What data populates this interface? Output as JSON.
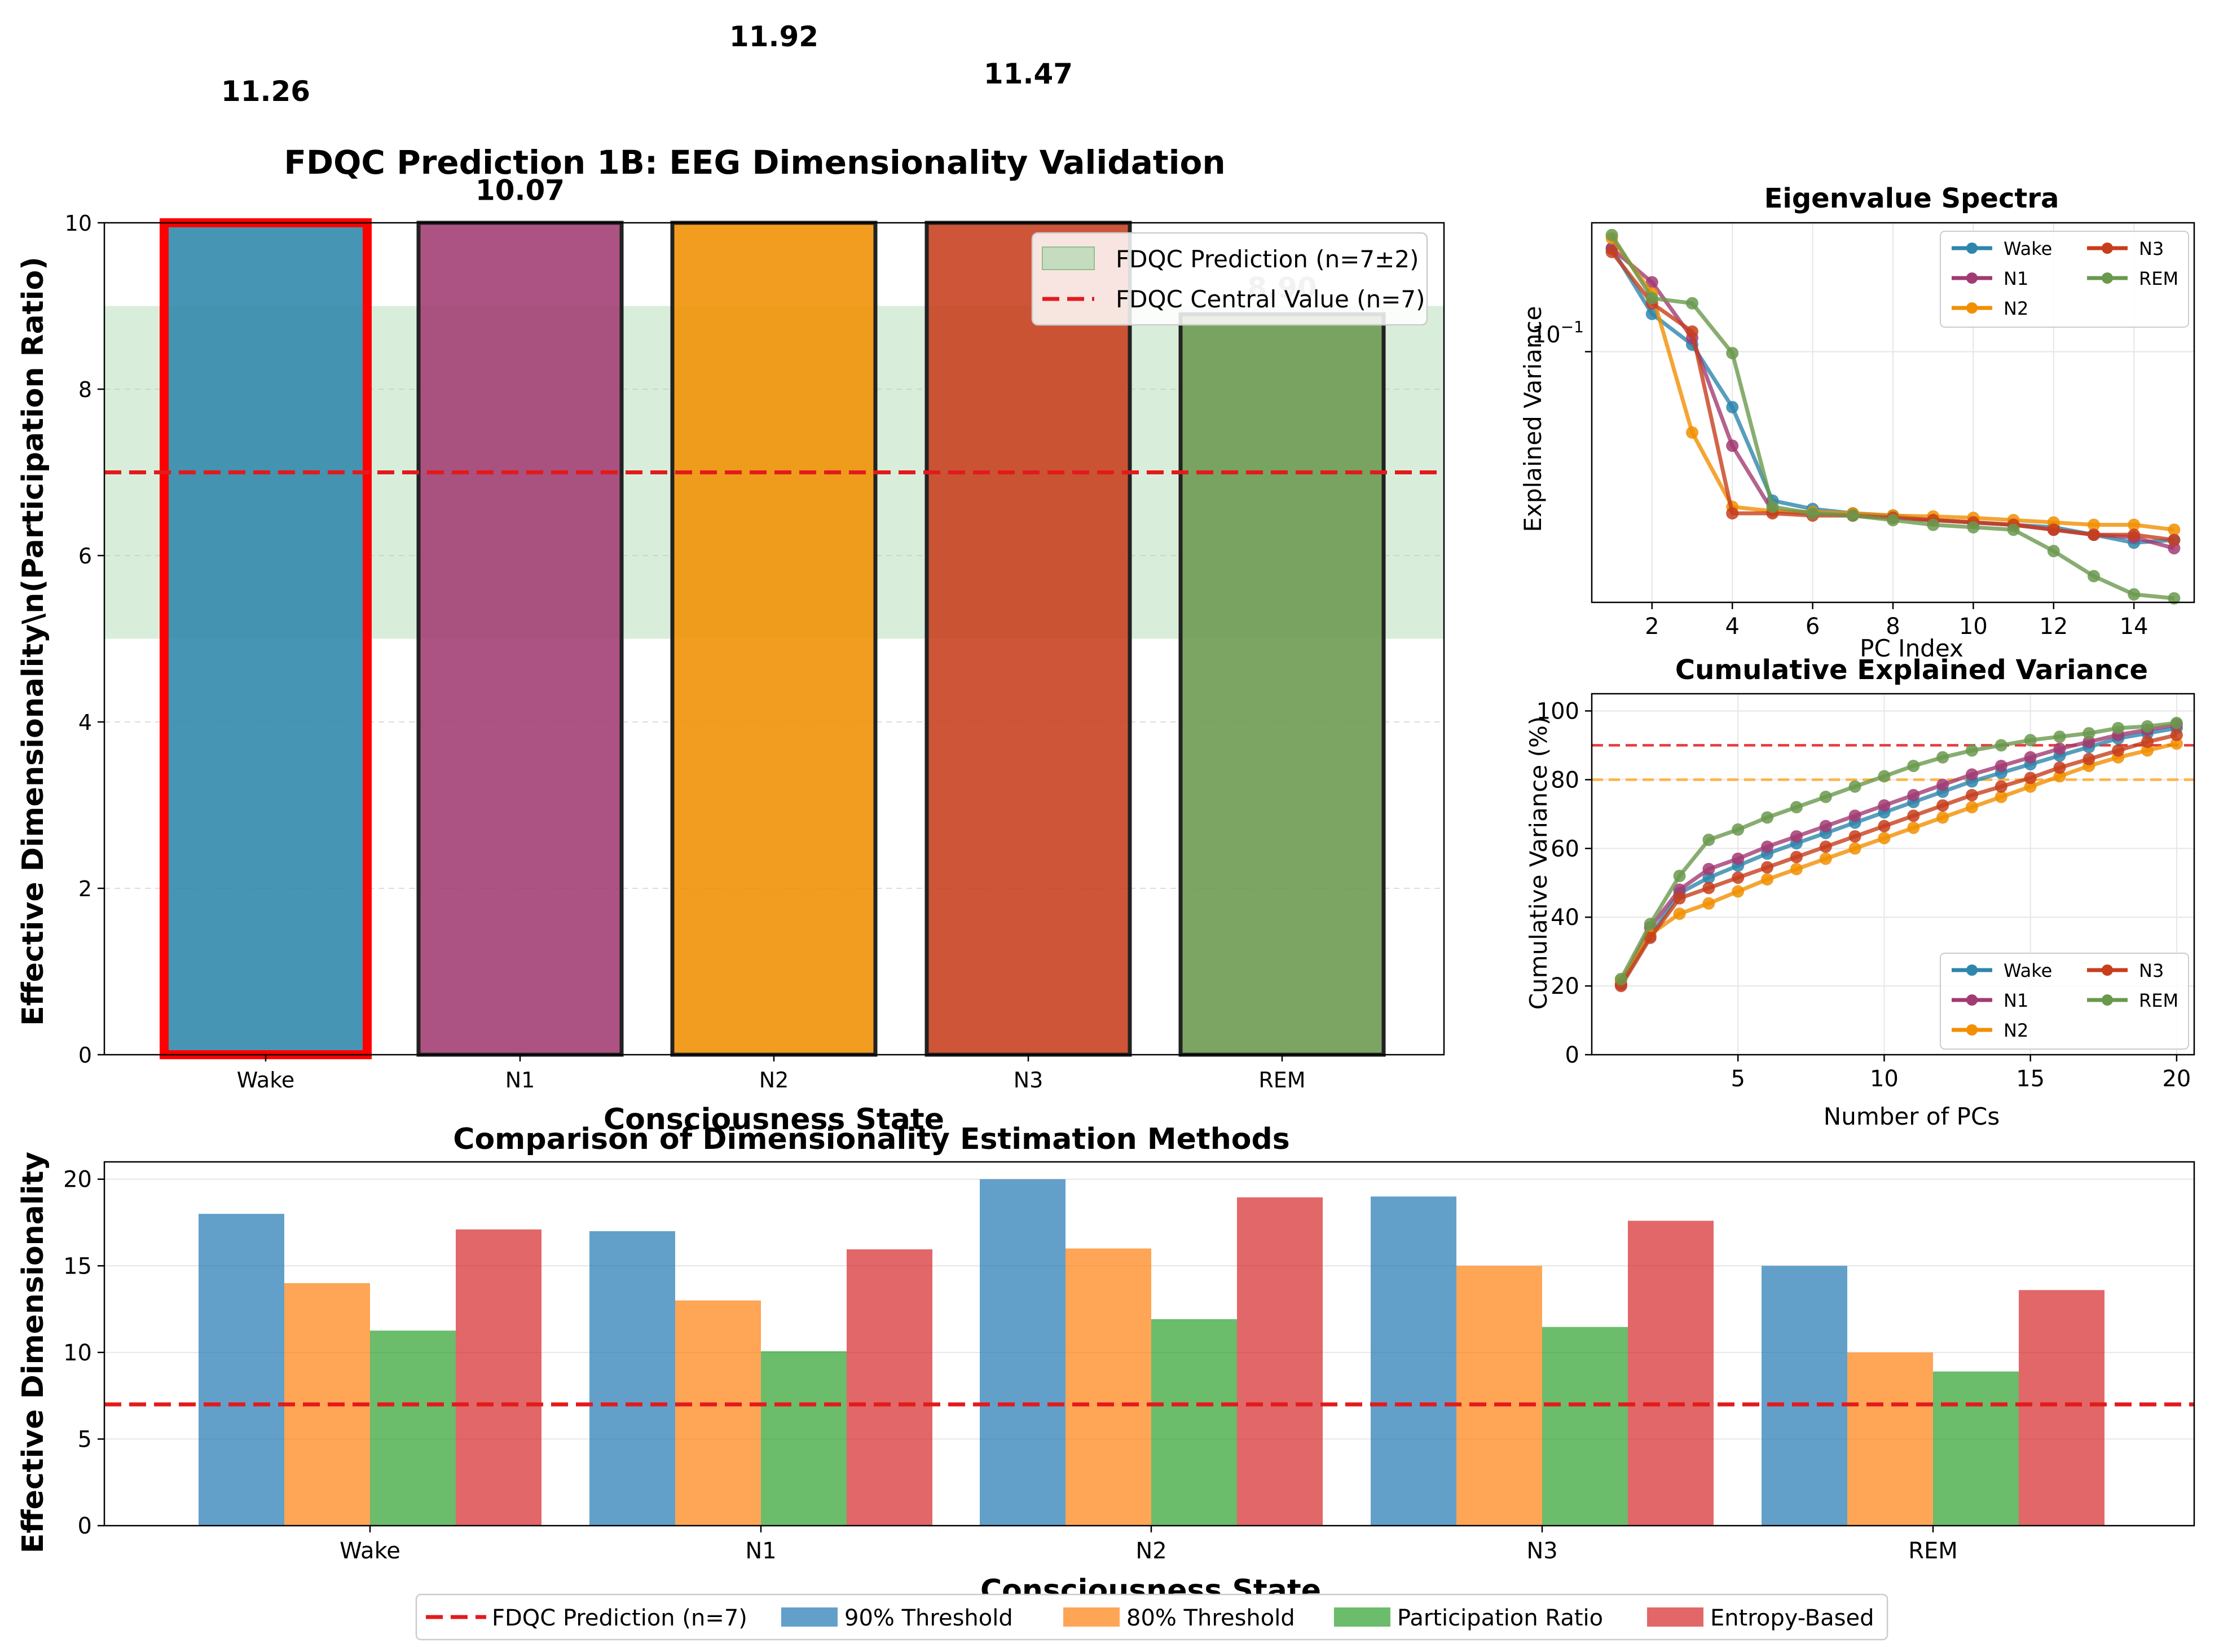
{
  "chart_data": [
    {
      "type": "bar",
      "title": "FDQC Prediction 1B: EEG Dimensionality Validation",
      "xlabel": "Consciousness State",
      "ylabel": "Effective Dimensionality\\n(Participation Ratio)",
      "categories": [
        "Wake",
        "N1",
        "N2",
        "N3",
        "REM"
      ],
      "values": [
        11.26,
        10.07,
        11.92,
        11.47,
        8.9
      ],
      "value_labels": [
        "11.26",
        "10.07",
        "11.92",
        "11.47",
        "8.90"
      ],
      "ylim": [
        0,
        10
      ],
      "yticks": [
        "0",
        "2",
        "4",
        "6",
        "8",
        "10"
      ],
      "colors": [
        "#2E86AB",
        "#A23B72",
        "#F18F01",
        "#C73E1D",
        "#6A994E"
      ],
      "highlight": "Wake",
      "prediction_band": [
        5,
        9
      ],
      "central_value": 7,
      "legend": [
        {
          "label": "FDQC Prediction (n=7±2)",
          "kind": "band",
          "color": "#A5D6A7"
        },
        {
          "label": "FDQC Central Value (n=7)",
          "kind": "dashed",
          "color": "#E31A1C"
        }
      ],
      "legend_position": "top-right",
      "grid": "y"
    },
    {
      "type": "line",
      "title": "Eigenvalue Spectra",
      "xlabel": "PC Index",
      "ylabel": "Explained Variance",
      "yscale": "log",
      "xlim": [
        0.5,
        15.5
      ],
      "ylim": [
        0.0175,
        0.245
      ],
      "xticks": [
        "2",
        "4",
        "6",
        "8",
        "10",
        "12",
        "14"
      ],
      "ytick_label": "10",
      "ytick_exp": "−1",
      "x": [
        1,
        2,
        3,
        4,
        5,
        6,
        7,
        8,
        9,
        10,
        11,
        12,
        13,
        14,
        15
      ],
      "series": [
        {
          "name": "Wake",
          "color": "#2E86AB",
          "values": [
            0.205,
            0.13,
            0.105,
            0.068,
            0.0355,
            0.0335,
            0.0325,
            0.032,
            0.031,
            0.0305,
            0.03,
            0.0295,
            0.028,
            0.0265,
            0.027
          ]
        },
        {
          "name": "N1",
          "color": "#A23B72",
          "values": [
            0.205,
            0.162,
            0.11,
            0.052,
            0.033,
            0.0325,
            0.032,
            0.0315,
            0.031,
            0.0305,
            0.03,
            0.029,
            0.028,
            0.0275,
            0.0255
          ]
        },
        {
          "name": "N2",
          "color": "#F18F01",
          "values": [
            0.22,
            0.15,
            0.057,
            0.034,
            0.033,
            0.0328,
            0.0325,
            0.032,
            0.0318,
            0.0315,
            0.031,
            0.0305,
            0.03,
            0.03,
            0.029
          ]
        },
        {
          "name": "N3",
          "color": "#C73E1D",
          "values": [
            0.2,
            0.14,
            0.115,
            0.0325,
            0.0325,
            0.032,
            0.032,
            0.0315,
            0.031,
            0.0305,
            0.03,
            0.029,
            0.028,
            0.028,
            0.027
          ]
        },
        {
          "name": "REM",
          "color": "#6A994E",
          "values": [
            0.225,
            0.145,
            0.14,
            0.099,
            0.034,
            0.0325,
            0.032,
            0.031,
            0.03,
            0.0295,
            0.029,
            0.025,
            0.021,
            0.0185,
            0.018
          ]
        }
      ],
      "legend_position": "top-right",
      "grid": true
    },
    {
      "type": "line",
      "title": "Cumulative Explained Variance",
      "xlabel": "Number of PCs",
      "ylabel": "Cumulative Variance (%)",
      "xlim": [
        0,
        20.6
      ],
      "ylim": [
        0,
        105
      ],
      "xticks": [
        "5",
        "10",
        "15",
        "20"
      ],
      "yticks": [
        "0",
        "20",
        "40",
        "60",
        "80",
        "100"
      ],
      "thresholds": [
        {
          "value": 90,
          "color": "#E31A1C"
        },
        {
          "value": 80,
          "color": "#FFA726"
        }
      ],
      "x": [
        1,
        2,
        3,
        4,
        5,
        6,
        7,
        8,
        9,
        10,
        11,
        12,
        13,
        14,
        15,
        16,
        17,
        18,
        19,
        20
      ],
      "series": [
        {
          "name": "Wake",
          "color": "#2E86AB",
          "values": [
            20.5,
            34.5,
            47,
            51.5,
            55,
            58.5,
            61.5,
            64.5,
            67.5,
            70.5,
            73.5,
            76.5,
            79.5,
            82,
            84.5,
            87,
            89.5,
            92,
            93.5,
            95
          ]
        },
        {
          "name": "N1",
          "color": "#A23B72",
          "values": [
            20.5,
            37,
            48,
            54,
            57,
            60.5,
            63.5,
            66.5,
            69.5,
            72.5,
            75.5,
            78.5,
            81.5,
            84,
            86.5,
            89,
            91,
            93,
            94.5,
            96
          ]
        },
        {
          "name": "N2",
          "color": "#F18F01",
          "values": [
            21.5,
            35,
            41,
            44,
            47.5,
            51,
            54,
            57,
            60,
            63,
            66,
            69,
            72,
            75,
            78,
            81,
            84,
            86.5,
            88.5,
            90.5
          ]
        },
        {
          "name": "N3",
          "color": "#C73E1D",
          "values": [
            20,
            34,
            45.5,
            48.5,
            51.5,
            54.5,
            57.5,
            60.5,
            63.5,
            66.5,
            69.5,
            72.5,
            75.5,
            78,
            80.5,
            83.5,
            86,
            88.5,
            91,
            93
          ]
        },
        {
          "name": "REM",
          "color": "#6A994E",
          "values": [
            22,
            38,
            52,
            62.5,
            65.5,
            69,
            72,
            75,
            78,
            81,
            84,
            86.5,
            88.5,
            90,
            91.5,
            92.5,
            93.5,
            95,
            95.5,
            96.5
          ]
        }
      ],
      "legend_position": "bottom-right",
      "grid": true
    },
    {
      "type": "bar",
      "title": "Comparison of Dimensionality Estimation Methods",
      "xlabel": "Consciousness State",
      "ylabel": "Effective Dimensionality",
      "categories": [
        "Wake",
        "N1",
        "N2",
        "N3",
        "REM"
      ],
      "ylim": [
        0,
        21
      ],
      "yticks": [
        "0",
        "5",
        "10",
        "15",
        "20"
      ],
      "reference_line": {
        "value": 7,
        "label": "FDQC Prediction (n=7)",
        "color": "#E31A1C"
      },
      "series": [
        {
          "name": "90% Threshold",
          "color": "#1f77b4",
          "values": [
            18,
            17,
            20,
            19,
            15
          ]
        },
        {
          "name": "80% Threshold",
          "color": "#ff7f0e",
          "values": [
            14,
            13,
            16,
            15,
            10
          ]
        },
        {
          "name": "Participation Ratio",
          "color": "#2ca02c",
          "values": [
            11.26,
            10.07,
            11.92,
            11.47,
            8.9
          ]
        },
        {
          "name": "Entropy-Based",
          "color": "#d62728",
          "values": [
            17.1,
            15.95,
            18.95,
            17.6,
            13.6
          ]
        }
      ],
      "legend_position": "bottom-center",
      "grid": "y"
    }
  ]
}
